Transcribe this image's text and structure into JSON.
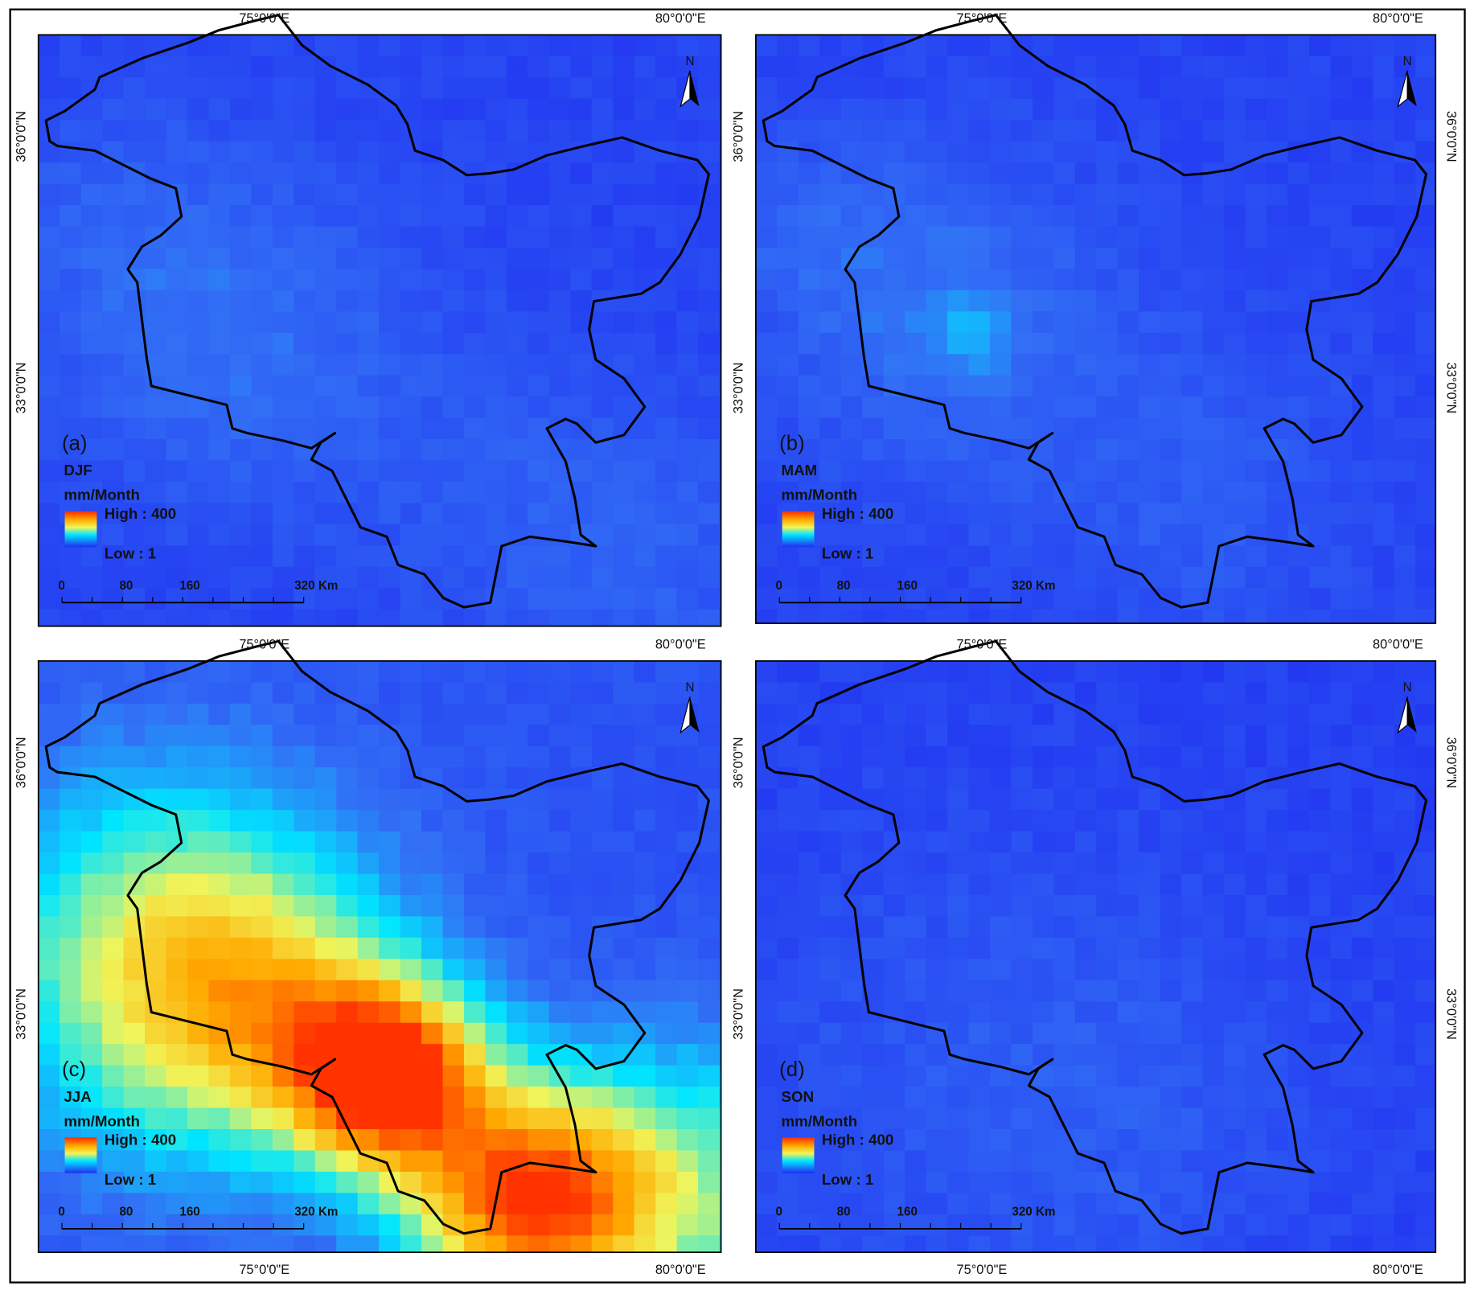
{
  "panels": [
    {
      "label": "(a)",
      "season": "DJF"
    },
    {
      "label": "(b)",
      "season": "MAM"
    },
    {
      "label": "(c)",
      "season": "JJA"
    },
    {
      "label": "(d)",
      "season": "SON"
    }
  ],
  "legend": {
    "title": "mm/Month",
    "high": "High : 400",
    "low": "Low : 1"
  },
  "scale_bar": [
    "0",
    "80",
    "160",
    "320 Km"
  ],
  "north": "N",
  "lon_labels": [
    "75°0'0\"E",
    "80°0'0\"E"
  ],
  "lat_labels": [
    "36°0'0\"N",
    "33°0'0\"N"
  ]
}
